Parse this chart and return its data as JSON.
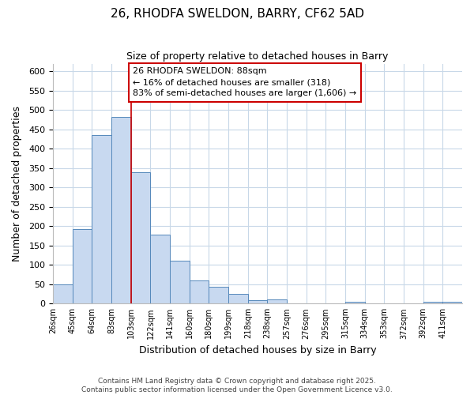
{
  "title": "26, RHODFA SWELDON, BARRY, CF62 5AD",
  "subtitle": "Size of property relative to detached houses in Barry",
  "xlabel": "Distribution of detached houses by size in Barry",
  "ylabel": "Number of detached properties",
  "bin_labels": [
    "26sqm",
    "45sqm",
    "64sqm",
    "83sqm",
    "103sqm",
    "122sqm",
    "141sqm",
    "160sqm",
    "180sqm",
    "199sqm",
    "218sqm",
    "238sqm",
    "257sqm",
    "276sqm",
    "295sqm",
    "315sqm",
    "334sqm",
    "353sqm",
    "372sqm",
    "392sqm",
    "411sqm"
  ],
  "bar_heights": [
    50,
    193,
    435,
    483,
    340,
    178,
    110,
    60,
    44,
    25,
    9,
    11,
    0,
    0,
    0,
    5,
    0,
    0,
    0,
    5,
    5
  ],
  "bar_color": "#c8d9f0",
  "bar_edge_color": "#5588bb",
  "property_line_x": 3,
  "property_line_label": "26 RHODFA SWELDON: 88sqm",
  "pct_smaller": 16,
  "n_smaller": 318,
  "pct_larger_semi": 83,
  "n_larger_semi": 1606,
  "vline_color": "#cc0000",
  "annotation_box_edge_color": "#cc0000",
  "ylim": [
    0,
    620
  ],
  "yticks": [
    0,
    50,
    100,
    150,
    200,
    250,
    300,
    350,
    400,
    450,
    500,
    550,
    600
  ],
  "footer_line1": "Contains HM Land Registry data © Crown copyright and database right 2025.",
  "footer_line2": "Contains public sector information licensed under the Open Government Licence v3.0.",
  "background_color": "#ffffff",
  "grid_color": "#c8d8e8"
}
